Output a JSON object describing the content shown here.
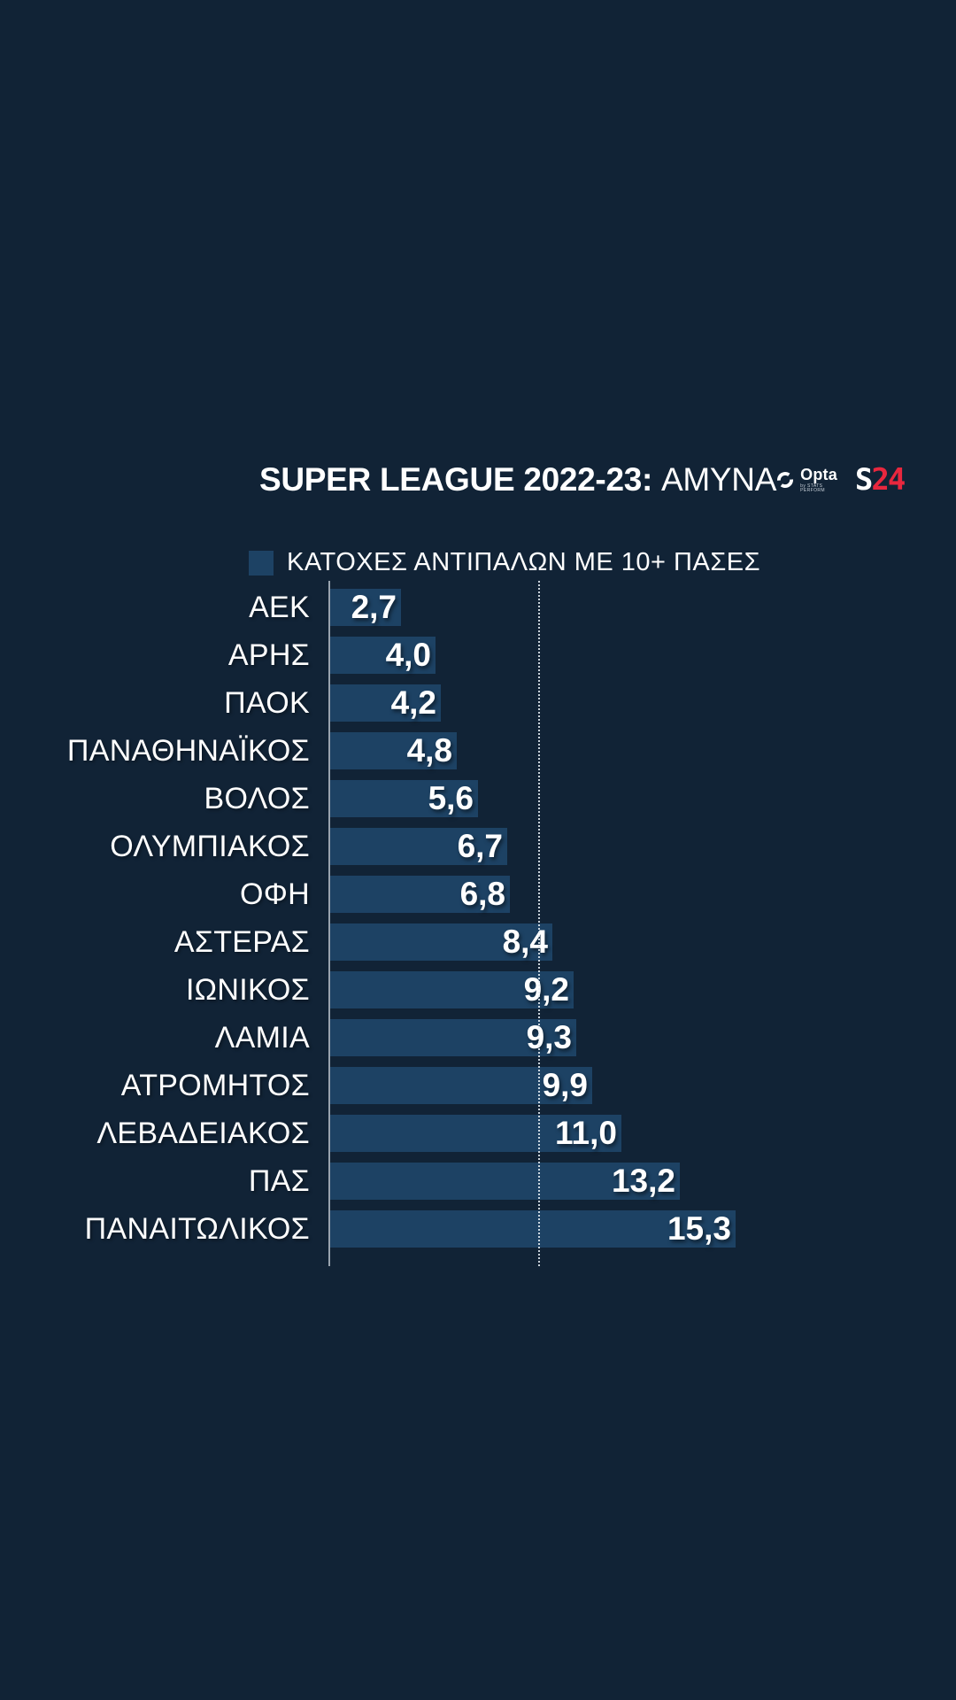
{
  "header": {
    "title_bold": "SUPER LEAGUE 2022-23:",
    "title_regular": "ΑΜΥΝΑ",
    "opta": {
      "name": "Opta",
      "sub": "by STATS PERFORM"
    },
    "s24": {
      "s": "S",
      "num": "24"
    }
  },
  "legend": {
    "label": "ΚΑΤΟΧΕΣ ΑΝΤΙΠΑΛΩΝ ΜΕ 10+ ΠΑΣΕΣ"
  },
  "chart_data": {
    "type": "bar",
    "orientation": "horizontal",
    "title": "SUPER LEAGUE 2022-23: ΑΜΥΝΑ",
    "legend_label": "ΚΑΤΟΧΕΣ ΑΝΤΙΠΑΛΩΝ ΜΕ 10+ ΠΑΣΕΣ",
    "legend_position": "top-left",
    "grid": "off",
    "categories": [
      "ΑΕΚ",
      "ΑΡΗΣ",
      "ΠΑΟΚ",
      "ΠΑΝΑΘΗΝΑΪΚΟΣ",
      "ΒΟΛΟΣ",
      "ΟΛΥΜΠΙΑΚΟΣ",
      "ΟΦΗ",
      "ΑΣΤΕΡΑΣ",
      "ΙΩΝΙΚΟΣ",
      "ΛΑΜΙΑ",
      "ΑΤΡΟΜΗΤΟΣ",
      "ΛΕΒΑΔΕΙΑΚΟΣ",
      "ΠΑΣ",
      "ΠΑΝΑΙΤΩΛΙΚΟΣ"
    ],
    "values": [
      2.7,
      4.0,
      4.2,
      4.8,
      5.6,
      6.7,
      6.8,
      8.4,
      9.2,
      9.3,
      9.9,
      11.0,
      13.2,
      15.3
    ],
    "value_labels": [
      "2,7",
      "4,0",
      "4,2",
      "4,8",
      "5,6",
      "6,7",
      "6,8",
      "8,4",
      "9,2",
      "9,3",
      "9,9",
      "11,0",
      "13,2",
      "15,3"
    ],
    "xlim": [
      0,
      15.3
    ],
    "reference_line_x": 7.9,
    "colors": {
      "background": "#112336",
      "bar": "#1D4264",
      "text": "#FFFFFF",
      "axis": "#99A3AE",
      "s24_red": "#E8273E"
    }
  }
}
